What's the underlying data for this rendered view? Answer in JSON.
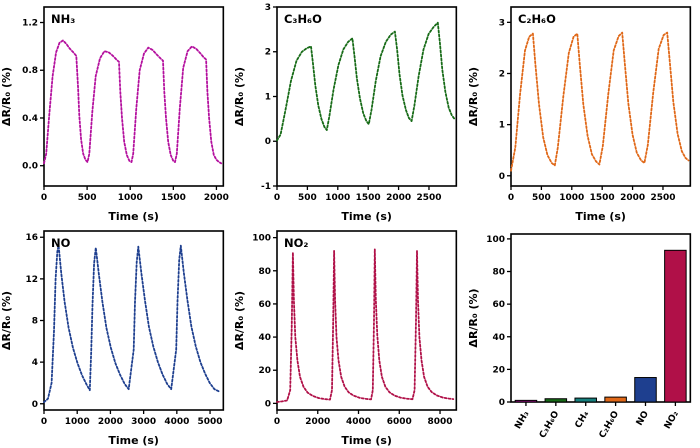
{
  "figure": {
    "background": "#ffffff"
  },
  "chart_data": [
    {
      "id": "nh3",
      "type": "line",
      "title": "NH₃",
      "xlabel": "Time (s)",
      "ylabel": "ΔR/R₀ (%)",
      "color": "#b4109e",
      "legend": "none",
      "grid": false,
      "xlim": [
        0,
        2080
      ],
      "ylim": [
        -0.17,
        1.33
      ],
      "xticks": [
        0,
        500,
        1000,
        1500,
        2000
      ],
      "xticklabels": [
        "0",
        "500",
        "1000",
        "1500",
        "2000"
      ],
      "yticks": [
        0.0,
        0.4,
        0.8,
        1.2
      ],
      "yticklabels": [
        "0.0",
        "0.4",
        "0.8",
        "1.2"
      ],
      "x": [
        0,
        25,
        60,
        100,
        140,
        180,
        220,
        260,
        300,
        340,
        375,
        395,
        410,
        430,
        455,
        480,
        505,
        525,
        560,
        600,
        650,
        700,
        750,
        800,
        840,
        870,
        885,
        905,
        930,
        960,
        990,
        1015,
        1035,
        1070,
        1110,
        1160,
        1210,
        1260,
        1310,
        1350,
        1380,
        1395,
        1415,
        1440,
        1470,
        1500,
        1520,
        1540,
        1575,
        1615,
        1665,
        1715,
        1765,
        1815,
        1850,
        1880,
        1895,
        1915,
        1940,
        1970,
        2000,
        2030,
        2055
      ],
      "y": [
        0.02,
        0.1,
        0.42,
        0.75,
        0.95,
        1.03,
        1.05,
        1.02,
        0.98,
        0.95,
        0.92,
        0.65,
        0.42,
        0.22,
        0.1,
        0.05,
        0.03,
        0.1,
        0.45,
        0.75,
        0.9,
        0.96,
        0.95,
        0.92,
        0.89,
        0.87,
        0.62,
        0.4,
        0.2,
        0.09,
        0.04,
        0.03,
        0.1,
        0.48,
        0.8,
        0.94,
        0.99,
        0.97,
        0.93,
        0.9,
        0.88,
        0.62,
        0.4,
        0.2,
        0.09,
        0.04,
        0.03,
        0.1,
        0.48,
        0.82,
        0.96,
        1.0,
        0.98,
        0.94,
        0.91,
        0.89,
        0.62,
        0.4,
        0.2,
        0.09,
        0.05,
        0.03,
        0.02
      ]
    },
    {
      "id": "c3h6o",
      "type": "line",
      "title": "C₃H₆O",
      "xlabel": "Time (s)",
      "ylabel": "ΔR/R₀ (%)",
      "color": "#176b17",
      "legend": "none",
      "grid": false,
      "xlim": [
        0,
        2950
      ],
      "ylim": [
        -1,
        3
      ],
      "xticks": [
        0,
        500,
        1000,
        1500,
        2000,
        2500
      ],
      "xticklabels": [
        "0",
        "500",
        "1000",
        "1500",
        "2000",
        "2500"
      ],
      "yticks": [
        -1,
        0,
        1,
        2,
        3
      ],
      "yticklabels": [
        "-1",
        "0",
        "1",
        "2",
        "3"
      ],
      "x": [
        0,
        60,
        140,
        230,
        320,
        410,
        490,
        560,
        590,
        630,
        680,
        730,
        780,
        820,
        860,
        930,
        1010,
        1090,
        1170,
        1240,
        1275,
        1315,
        1365,
        1420,
        1470,
        1510,
        1555,
        1625,
        1705,
        1790,
        1870,
        1940,
        1975,
        2015,
        2065,
        2120,
        2170,
        2215,
        2260,
        2330,
        2410,
        2495,
        2575,
        2645,
        2680,
        2720,
        2770,
        2825,
        2875,
        2920
      ],
      "y": [
        0.02,
        0.15,
        0.7,
        1.35,
        1.8,
        2.0,
        2.08,
        2.12,
        1.75,
        1.25,
        0.8,
        0.5,
        0.32,
        0.25,
        0.55,
        1.15,
        1.7,
        2.05,
        2.22,
        2.3,
        1.9,
        1.4,
        0.95,
        0.62,
        0.45,
        0.38,
        0.7,
        1.35,
        1.9,
        2.22,
        2.38,
        2.45,
        2.05,
        1.5,
        1.02,
        0.7,
        0.52,
        0.45,
        0.8,
        1.45,
        2.05,
        2.4,
        2.55,
        2.65,
        2.2,
        1.6,
        1.1,
        0.75,
        0.58,
        0.5
      ]
    },
    {
      "id": "c2h6o",
      "type": "line",
      "title": "C₂H₆O",
      "xlabel": "Time (s)",
      "ylabel": "ΔR/R₀ (%)",
      "color": "#e06818",
      "legend": "none",
      "grid": false,
      "xlim": [
        0,
        2950
      ],
      "ylim": [
        -0.2,
        3.3
      ],
      "xticks": [
        0,
        500,
        1000,
        1500,
        2000,
        2500
      ],
      "xticklabels": [
        "0",
        "500",
        "1000",
        "1500",
        "2000",
        "2500"
      ],
      "yticks": [
        0,
        1,
        2,
        3
      ],
      "yticklabels": [
        "0",
        "1",
        "2",
        "3"
      ],
      "x": [
        0,
        70,
        150,
        230,
        300,
        360,
        400,
        460,
        530,
        600,
        670,
        720,
        770,
        860,
        950,
        1030,
        1090,
        1130,
        1190,
        1260,
        1330,
        1400,
        1455,
        1510,
        1600,
        1690,
        1770,
        1830,
        1870,
        1930,
        2000,
        2070,
        2140,
        2195,
        2250,
        2340,
        2430,
        2510,
        2570,
        2610,
        2670,
        2740,
        2810,
        2870,
        2920
      ],
      "y": [
        0.1,
        0.55,
        1.6,
        2.45,
        2.72,
        2.78,
        2.2,
        1.4,
        0.75,
        0.4,
        0.25,
        0.2,
        0.55,
        1.55,
        2.4,
        2.72,
        2.78,
        2.2,
        1.4,
        0.78,
        0.42,
        0.28,
        0.22,
        0.58,
        1.6,
        2.45,
        2.73,
        2.8,
        2.22,
        1.42,
        0.8,
        0.45,
        0.3,
        0.25,
        0.6,
        1.62,
        2.48,
        2.75,
        2.8,
        2.25,
        1.45,
        0.82,
        0.48,
        0.35,
        0.3
      ]
    },
    {
      "id": "no",
      "type": "line",
      "title": "NO",
      "xlabel": "Time (s)",
      "ylabel": "ΔR/R₀ (%)",
      "color": "#1e3f8f",
      "legend": "none",
      "grid": false,
      "xlim": [
        0,
        5400
      ],
      "ylim": [
        -0.6,
        16.6
      ],
      "xticks": [
        0,
        1000,
        2000,
        3000,
        4000,
        5000
      ],
      "xticklabels": [
        "0",
        "1000",
        "2000",
        "3000",
        "4000",
        "5000"
      ],
      "yticks": [
        0,
        4,
        8,
        12,
        16
      ],
      "yticklabels": [
        "0",
        "4",
        "8",
        "12",
        "16"
      ],
      "x": [
        0,
        120,
        230,
        300,
        350,
        400,
        440,
        520,
        620,
        740,
        870,
        1010,
        1150,
        1290,
        1380,
        1420,
        1460,
        1510,
        1560,
        1650,
        1760,
        1880,
        2010,
        2150,
        2290,
        2430,
        2550,
        2700,
        2740,
        2790,
        2840,
        2930,
        3040,
        3160,
        3290,
        3430,
        3570,
        3710,
        3830,
        3980,
        4020,
        4070,
        4120,
        4210,
        4320,
        4440,
        4570,
        4710,
        4850,
        4990,
        5130,
        5260
      ],
      "y": [
        0.15,
        0.5,
        2.0,
        7.0,
        12.0,
        14.6,
        15.2,
        12.5,
        9.8,
        7.3,
        5.4,
        3.9,
        2.7,
        1.8,
        1.3,
        5.0,
        9.5,
        13.5,
        15.0,
        12.5,
        9.8,
        7.3,
        5.4,
        3.9,
        2.8,
        1.9,
        1.4,
        5.2,
        9.8,
        13.6,
        15.1,
        12.6,
        9.9,
        7.4,
        5.5,
        4.0,
        2.8,
        1.9,
        1.4,
        5.2,
        9.8,
        13.8,
        15.2,
        12.6,
        9.9,
        7.4,
        5.5,
        4.0,
        2.9,
        2.0,
        1.4,
        1.2
      ]
    },
    {
      "id": "no2",
      "type": "line",
      "title": "NO₂",
      "xlabel": "Time (s)",
      "ylabel": "ΔR/R₀ (%)",
      "color": "#b01048",
      "legend": "none",
      "grid": false,
      "xlim": [
        0,
        8800
      ],
      "ylim": [
        -4,
        104
      ],
      "xticks": [
        0,
        2000,
        4000,
        6000,
        8000
      ],
      "xticklabels": [
        "0",
        "2000",
        "4000",
        "6000",
        "8000"
      ],
      "yticks": [
        0,
        20,
        40,
        60,
        80,
        100
      ],
      "yticklabels": [
        "0",
        "20",
        "40",
        "60",
        "80",
        "100"
      ],
      "x": [
        0,
        250,
        500,
        650,
        720,
        780,
        830,
        900,
        1000,
        1130,
        1300,
        1500,
        1750,
        2050,
        2350,
        2600,
        2700,
        2760,
        2800,
        2850,
        2920,
        3020,
        3150,
        3320,
        3520,
        3770,
        4070,
        4370,
        4620,
        4700,
        4760,
        4800,
        4850,
        4920,
        5020,
        5150,
        5320,
        5520,
        5770,
        6070,
        6370,
        6650,
        6750,
        6820,
        6870,
        6920,
        6990,
        7090,
        7220,
        7390,
        7590,
        7840,
        8140,
        8440,
        8650
      ],
      "y": [
        0.8,
        1.2,
        1.8,
        8,
        45,
        91,
        62,
        40,
        26,
        16,
        10,
        6.5,
        4.5,
        3.2,
        2.6,
        2.3,
        8,
        50,
        92,
        62,
        40,
        26,
        16,
        10,
        6.6,
        4.6,
        3.3,
        2.7,
        2.4,
        8,
        50,
        93,
        63,
        41,
        26,
        16,
        10,
        6.7,
        4.7,
        3.4,
        2.8,
        2.5,
        8,
        50,
        92,
        62,
        40,
        26,
        16,
        10,
        6.8,
        4.8,
        3.5,
        2.9,
        2.6
      ]
    },
    {
      "id": "response-comparison",
      "type": "bar",
      "title": "",
      "xlabel": "",
      "ylabel": "ΔR/R₀ (%)",
      "legend": "none",
      "grid": false,
      "ylim": [
        0,
        103
      ],
      "yticks": [
        0,
        20,
        40,
        60,
        80,
        100
      ],
      "yticklabels": [
        "0",
        "20",
        "40",
        "60",
        "80",
        "100"
      ],
      "categories": [
        "NH₃",
        "C₃H₆O",
        "CH₄",
        "C₂H₆O",
        "NO",
        "NO₂"
      ],
      "values": [
        1.0,
        2.0,
        2.4,
        3.0,
        15,
        93
      ],
      "colors": [
        "#b4109e",
        "#176b17",
        "#17807e",
        "#e06818",
        "#1e3f8f",
        "#b01048"
      ]
    }
  ]
}
